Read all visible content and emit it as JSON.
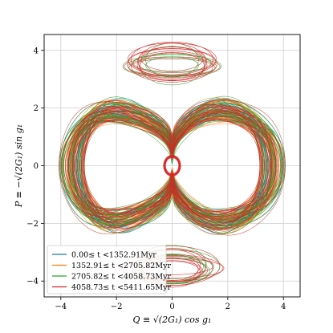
{
  "chart_data": {
    "type": "line",
    "xlabel": "Q ≡ √(2G₁) cos g₁",
    "ylabel": "P ≡ −√(2G₁) sin g₁",
    "xlim": [
      -4.6,
      4.6
    ],
    "ylim": [
      -4.55,
      4.55
    ],
    "x_ticks": [
      -4,
      -2,
      0,
      2,
      4
    ],
    "y_ticks": [
      -4,
      -2,
      0,
      2,
      4
    ],
    "grid": true,
    "legend": {
      "placement": "lower-left"
    },
    "series": [
      {
        "name": "0.00≤ t <1352.91Myr",
        "color": "#1f77b4"
      },
      {
        "name": "1352.91≤ t <2705.82Myr",
        "color": "#ff7f0e"
      },
      {
        "name": "2705.82≤ t <4058.73Myr",
        "color": "#2ca02c"
      },
      {
        "name": "4058.73≤ t <5411.65Myr",
        "color": "#d62728"
      }
    ],
    "annotations": {
      "central_loop": {
        "center": [
          0,
          0
        ],
        "rx": 0.28,
        "ry": 0.33
      },
      "upper_island": {
        "center": [
          0,
          3.55
        ],
        "rx": 1.7,
        "ry": 0.6
      },
      "lower_island": {
        "center": [
          0,
          -3.55
        ],
        "rx": 1.7,
        "ry": 0.6
      }
    }
  }
}
